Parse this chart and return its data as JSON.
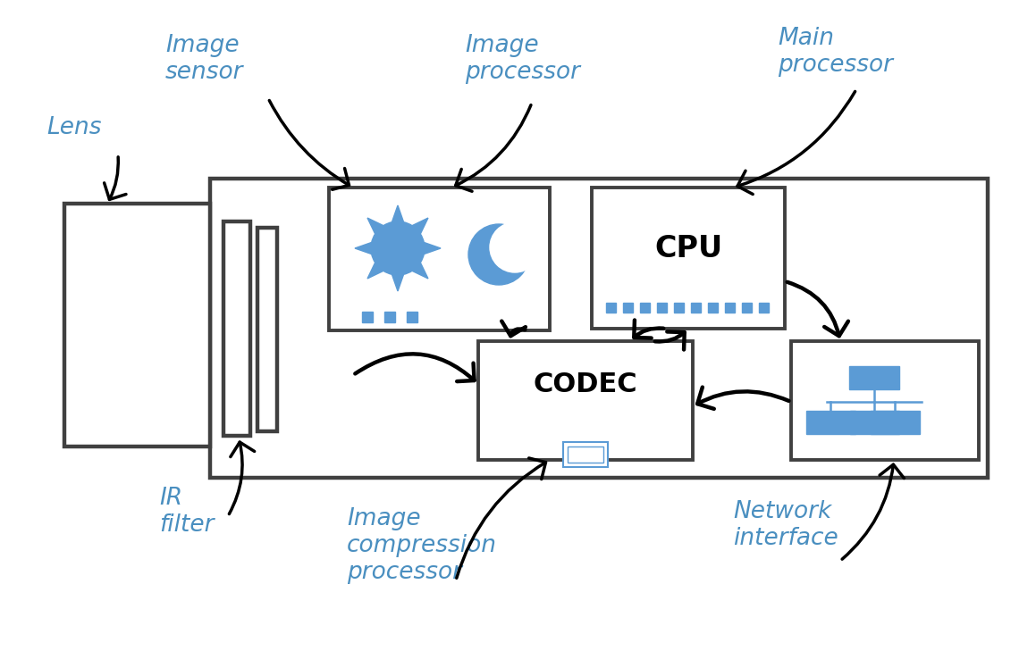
{
  "bg_color": "#ffffff",
  "label_color": "#4a8fc0",
  "box_color": "#404040",
  "blue_fill": "#5b9bd5",
  "blue_line": "#5b9bd5",
  "fig_width": 11.59,
  "fig_height": 7.29,
  "labels": {
    "lens": "Lens",
    "image_sensor": "Image\nsensor",
    "image_processor": "Image\nprocessor",
    "main_processor": "Main\nprocessor",
    "ir_filter": "IR\nfilter",
    "image_compression": "Image\ncompression\nprocessor",
    "network_interface": "Network\ninterface"
  }
}
